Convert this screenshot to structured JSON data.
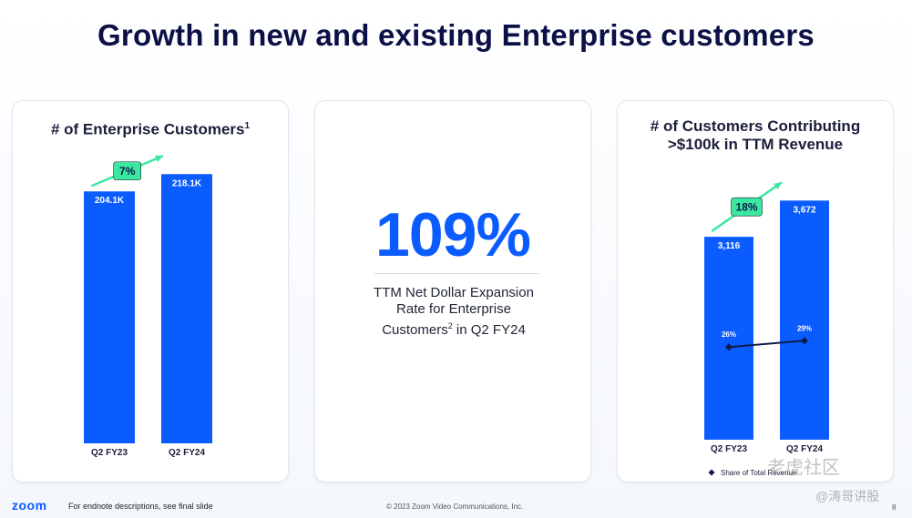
{
  "title": "Growth in new and existing Enterprise customers",
  "left_card": {
    "title": "# of Enterprise Customers",
    "title_sup": "1"
  },
  "mid_card": {
    "value": "109%",
    "desc_line1": "TTM Net Dollar Expansion",
    "desc_line2": "Rate for Enterprise",
    "desc_line3a": "Customers",
    "desc_sup": "2",
    "desc_line3b": " in Q2 FY24"
  },
  "right_card": {
    "title_line1": "# of Customers Contributing",
    "title_line2": ">$100k in TTM Revenue"
  },
  "chart_data": [
    {
      "type": "bar",
      "title": "# of Enterprise Customers",
      "categories": [
        "Q2 FY23",
        "Q2 FY24"
      ],
      "values": [
        204.1,
        218.1
      ],
      "labels": [
        "204.1K",
        "218.1K"
      ],
      "ylim": [
        0,
        250
      ],
      "growth_label": "7%",
      "colors": {
        "bar": "#0b5cff",
        "badge": "#3ce8a0"
      }
    },
    {
      "type": "bar",
      "title": "# of Customers Contributing >$100k in TTM Revenue",
      "categories": [
        "Q2 FY23",
        "Q2 FY24"
      ],
      "values": [
        3116,
        3672
      ],
      "labels": [
        "3,116",
        "3,672"
      ],
      "ylim": [
        0,
        3900
      ],
      "growth_label": "18%",
      "line_series": {
        "name": "Share of Total Revenue",
        "values": [
          26,
          29
        ],
        "labels": [
          "26%",
          "29%"
        ],
        "ylim": [
          0,
          100
        ]
      },
      "colors": {
        "bar": "#0b5cff",
        "badge": "#3ce8a0",
        "line": "#0b1a4a"
      }
    }
  ],
  "footer": {
    "logo": "zoom",
    "note": "For endnote descriptions, see final slide",
    "copyright": "© 2023 Zoom Video Communications, Inc.",
    "page": "8"
  },
  "watermark": {
    "line1": "老虎社区",
    "line2": "@涛哥讲股"
  }
}
